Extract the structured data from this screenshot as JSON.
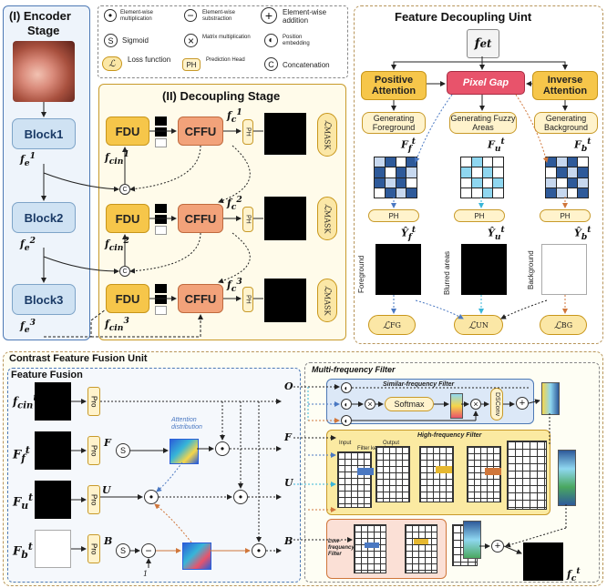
{
  "encoder": {
    "title_line1": "(I) Encoder",
    "title_line2": "Stage",
    "blocks": [
      "Block1",
      "Block2",
      "Block3"
    ],
    "features": [
      "f",
      "f",
      "f"
    ],
    "feature_sub": "e",
    "feature_sups": [
      "1",
      "2",
      "3"
    ]
  },
  "legend": {
    "elem_mult": "Element-wise multiplication",
    "elem_sub": "Element-wise substraction",
    "elem_add": "Element-wise addition",
    "sigmoid_sym": "S",
    "sigmoid": "Sigmoid",
    "matrix_mult": "Matrix multiplication",
    "pos_embed": "Position embedding",
    "loss_sym": "ℒ",
    "loss": "Loss function",
    "ph_sym": "PH",
    "ph": "Prediction Head",
    "concat_sym": "C",
    "concat": "Concatenation"
  },
  "decoupling": {
    "title": "(II) Decoupling Stage",
    "fdu": "FDU",
    "cffu": "CFFU",
    "ph": "PH",
    "loss": "ℒ",
    "loss_sub": "MASK",
    "cin": "f",
    "cin_sub": "cin",
    "c_out": "f",
    "c_sub": "c",
    "sups": [
      "1",
      "2",
      "3"
    ],
    "concat": "C"
  },
  "fdu_unit": {
    "title": "Feature Decoupling Uint",
    "input": "f",
    "input_sub": "e",
    "input_sup": "t",
    "positive": "Positive Attention",
    "pixel_gap": "Pixel Gap",
    "inverse": "Inverse Attention",
    "gen_fg": "Generating Foreground",
    "gen_fuzzy": "Generating Fuzzy Areas",
    "gen_bg": "Generating Background",
    "feat_f": "F",
    "feat_u": "F",
    "feat_b": "F",
    "sub_f": "f",
    "sub_u": "u",
    "sub_b": "b",
    "sup": "t",
    "ph": "PH",
    "y_f": "Ŷ",
    "y_u": "Ŷ",
    "y_b": "Ŷ",
    "lbl_fg": "Foreground",
    "lbl_blur": "Blurred areas",
    "lbl_bg": "Background",
    "loss_fg": "ℒ",
    "loss_un": "ℒ",
    "loss_bg": "ℒ",
    "loss_fg_sub": "FG",
    "loss_un_sub": "UN",
    "loss_bg_sub": "BG"
  },
  "cffu_unit": {
    "title": "Contrast Feature Fusion Unit",
    "feature_fusion": "Feature Fusion",
    "inputs": [
      "f",
      "F",
      "F",
      "F"
    ],
    "input_subs": [
      "cin",
      "f",
      "u",
      "b"
    ],
    "input_sup": "t",
    "pro": "Pro",
    "branch_labels": [
      "F",
      "U",
      "B"
    ],
    "sig": "S",
    "attention": "Attention distribution",
    "one": "1",
    "outputs": [
      "O",
      "F",
      "U",
      "B"
    ],
    "mff": "Multi-frequency Filter",
    "similar": "Similar-frequency Filter",
    "softmax": "Softmax",
    "dsconv": "DSConv",
    "high": "High-frequency Filter",
    "low": "Low-frequency Filter",
    "input_lbl": "Input",
    "filter_kernel": "Filter kernel",
    "output_lbl": "Output",
    "final": "f",
    "final_sub": "c",
    "final_sup": "t"
  },
  "colors": {
    "blue_dash": "#4a78c2",
    "orange_dash": "#d0763a",
    "cyan": "#37b5d8",
    "red": "#c03040",
    "panel_border": "#b8955a"
  }
}
